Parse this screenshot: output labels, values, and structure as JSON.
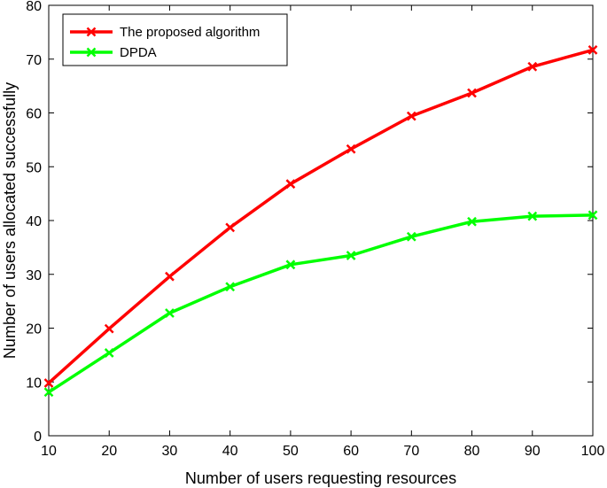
{
  "chart_data": {
    "type": "line",
    "title": "",
    "xlabel": "Number of users requesting resources",
    "ylabel": "Number of users allocated successfully",
    "x": [
      10,
      20,
      30,
      40,
      50,
      60,
      70,
      80,
      90,
      100
    ],
    "xlim": [
      10,
      100
    ],
    "ylim": [
      0,
      80
    ],
    "xticks": [
      10,
      20,
      30,
      40,
      50,
      60,
      70,
      80,
      90,
      100
    ],
    "yticks": [
      0,
      10,
      20,
      30,
      40,
      50,
      60,
      70,
      80
    ],
    "grid": false,
    "legend_position": "top-left",
    "series": [
      {
        "name": "The proposed algorithm",
        "color": "#ff0000",
        "marker": "x",
        "values": [
          9.8,
          19.9,
          29.6,
          38.7,
          46.8,
          53.3,
          59.4,
          63.7,
          68.6,
          71.7
        ]
      },
      {
        "name": "DPDA",
        "color": "#00ff00",
        "marker": "x",
        "values": [
          8.1,
          15.4,
          22.8,
          27.7,
          31.8,
          33.5,
          37.0,
          39.8,
          40.8,
          41.0
        ]
      }
    ]
  }
}
